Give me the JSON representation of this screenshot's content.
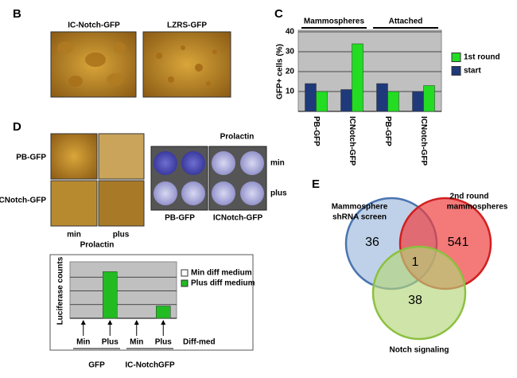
{
  "panels": {
    "B": {
      "label": "B",
      "images": [
        "IC-Notch-GFP",
        "LZRS-GFP"
      ]
    },
    "C": {
      "label": "C"
    },
    "D": {
      "label": "D",
      "rows": [
        "PB-GFP",
        "ICNotch-GFP"
      ],
      "columns": [
        "min",
        "plus"
      ],
      "column_title": "Prolactin",
      "plate_title": "Prolactin",
      "plate_rows": [
        "min",
        "plus"
      ],
      "plates": [
        "PB-GFP",
        "ICNotch-GFP"
      ]
    },
    "E": {
      "label": "E",
      "sets": [
        {
          "name_lines": [
            "Mammosphere",
            "shRNA  screen"
          ],
          "only": 36
        },
        {
          "name_lines": [
            "2nd round",
            "mammospheres"
          ],
          "only": 541
        },
        {
          "name_lines": [
            "Notch signaling"
          ],
          "only": 38
        }
      ],
      "shared": 1
    }
  },
  "chart_data": [
    {
      "type": "bar",
      "y_label": "GFP+ cells (%)",
      "categories": [
        "PB-GFP",
        "ICNotch-GFP",
        "PB-GFP",
        "ICNotch-GFP"
      ],
      "groups": [
        {
          "name": "Mammospheres",
          "span": [
            0,
            1
          ]
        },
        {
          "name": "Attached",
          "span": [
            2,
            3
          ]
        }
      ],
      "series": [
        {
          "name": "start",
          "color": "#1f3a7a",
          "values": [
            14,
            11,
            14,
            10
          ]
        },
        {
          "name": "1st round",
          "color": "#22dd22",
          "values": [
            10,
            34,
            10,
            13
          ]
        }
      ],
      "legend_order": [
        1,
        0
      ],
      "ylim": [
        0,
        40
      ],
      "yticks": [
        10,
        20,
        30,
        40
      ],
      "grid": true,
      "legend": "right"
    },
    {
      "type": "bar",
      "y_label": "Luciferase counts",
      "x_label": "Diff-med",
      "categories": [
        "Min",
        "Plus",
        "Min",
        "Plus"
      ],
      "groups": [
        {
          "name": "GFP",
          "span": [
            0,
            1
          ]
        },
        {
          "name": "IC-NotchGFP",
          "span": [
            2,
            3
          ]
        }
      ],
      "series": [
        {
          "name": "Min diff medium",
          "color": "#ffffff",
          "values": [
            0,
            null,
            0,
            null
          ]
        },
        {
          "name": "Plus diff medium",
          "color": "#22bb22",
          "values": [
            null,
            3.4,
            null,
            0.9
          ]
        }
      ],
      "legend_order": [
        0,
        1
      ],
      "ylim": [
        0,
        4
      ],
      "yticks": [
        1,
        2,
        3
      ],
      "grid": true,
      "legend": "right"
    }
  ]
}
